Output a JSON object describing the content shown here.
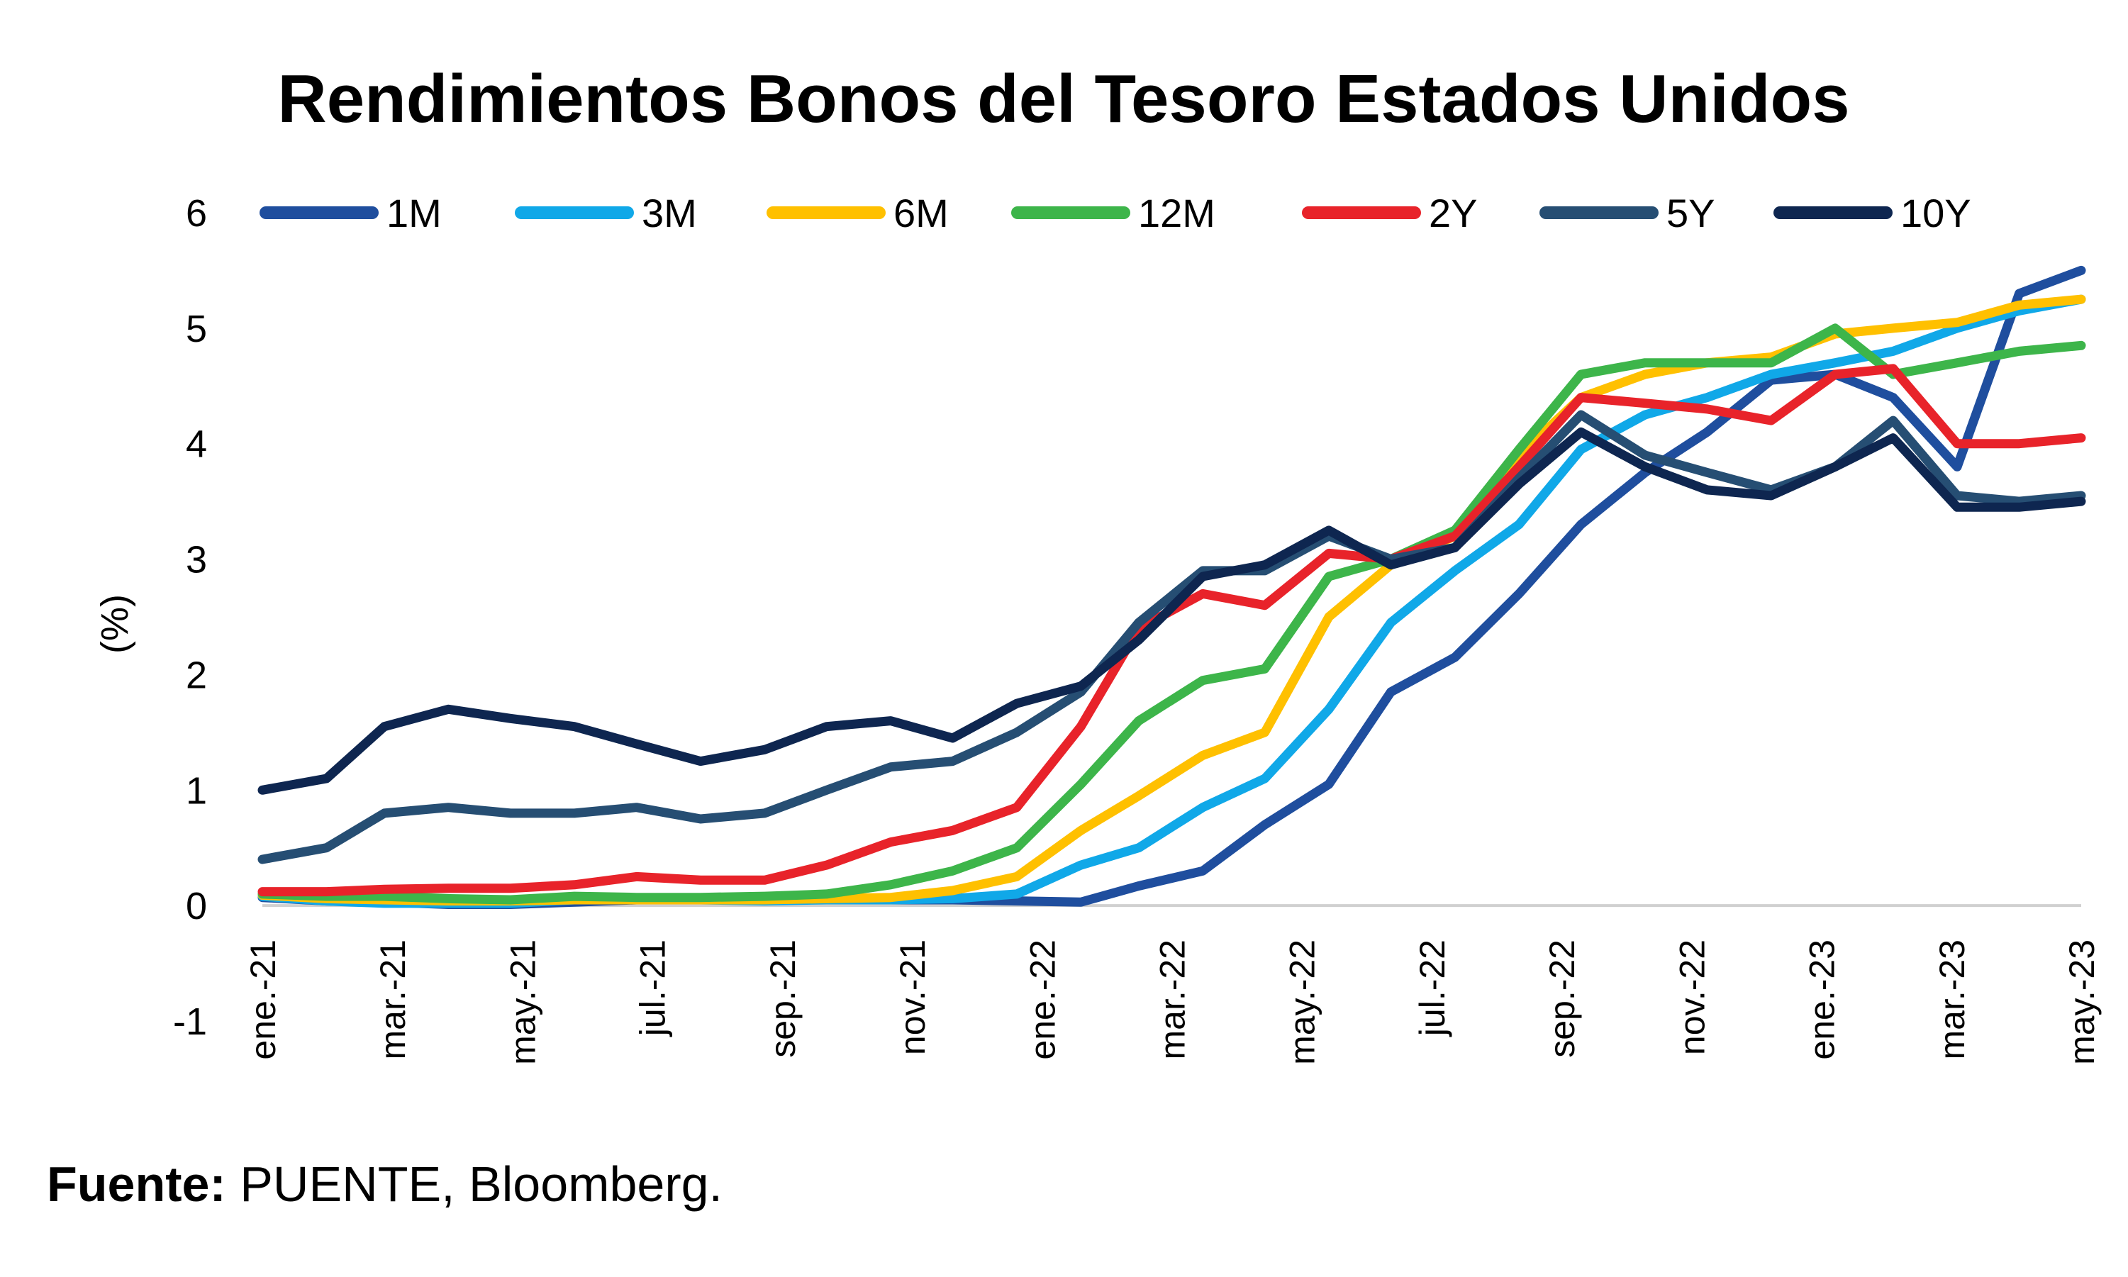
{
  "source": {
    "label": "Fuente:",
    "text": " PUENTE, Bloomberg."
  },
  "chart_data": {
    "type": "line",
    "title": "Rendimientos Bonos del Tesoro Estados Unidos",
    "ylabel": "(%)",
    "xlabel": "",
    "ylim": [
      -1,
      6
    ],
    "yticks": [
      "6",
      "5",
      "4",
      "3",
      "2",
      "1",
      "0",
      "-1"
    ],
    "xlim": [
      "2021-01-01",
      "2023-05-31"
    ],
    "x_tick_labels": [
      "ene.-21",
      "mar.-21",
      "may.-21",
      "jul.-21",
      "sep.-21",
      "nov.-21",
      "ene.-22",
      "mar.-22",
      "may.-22",
      "jul.-22",
      "sep.-22",
      "nov.-22",
      "ene.-23",
      "mar.-23",
      "may.-23"
    ],
    "x": [
      "2021-01-01",
      "2021-02-01",
      "2021-03-01",
      "2021-04-01",
      "2021-05-01",
      "2021-06-01",
      "2021-07-01",
      "2021-08-01",
      "2021-09-01",
      "2021-10-01",
      "2021-11-01",
      "2021-12-01",
      "2022-01-01",
      "2022-02-01",
      "2022-03-01",
      "2022-04-01",
      "2022-05-01",
      "2022-06-01",
      "2022-07-01",
      "2022-08-01",
      "2022-09-01",
      "2022-10-01",
      "2022-11-01",
      "2022-12-01",
      "2023-01-01",
      "2023-02-01",
      "2023-03-01",
      "2023-04-01",
      "2023-05-01",
      "2023-05-31"
    ],
    "legend_position": "top",
    "grid": false,
    "series": [
      {
        "name": "1M",
        "color": "#1F4E9E",
        "values": [
          0.07,
          0.04,
          0.03,
          0.01,
          0.01,
          0.03,
          0.05,
          0.05,
          0.06,
          0.05,
          0.05,
          0.05,
          0.04,
          0.03,
          0.17,
          0.3,
          0.7,
          1.05,
          1.85,
          2.15,
          2.7,
          3.3,
          3.75,
          4.1,
          4.55,
          4.6,
          4.4,
          3.8,
          5.3,
          5.5
        ]
      },
      {
        "name": "3M",
        "color": "#10A8E8",
        "values": [
          0.08,
          0.04,
          0.02,
          0.02,
          0.02,
          0.05,
          0.05,
          0.05,
          0.04,
          0.05,
          0.05,
          0.06,
          0.1,
          0.35,
          0.5,
          0.85,
          1.1,
          1.7,
          2.45,
          2.9,
          3.3,
          3.95,
          4.25,
          4.4,
          4.6,
          4.7,
          4.8,
          5.0,
          5.15,
          5.25
        ]
      },
      {
        "name": "6M",
        "color": "#FFC000",
        "values": [
          0.09,
          0.06,
          0.05,
          0.04,
          0.04,
          0.05,
          0.05,
          0.05,
          0.05,
          0.06,
          0.07,
          0.13,
          0.25,
          0.65,
          0.95,
          1.3,
          1.5,
          2.5,
          2.95,
          3.2,
          3.9,
          4.4,
          4.6,
          4.7,
          4.75,
          4.95,
          5.0,
          5.05,
          5.2,
          5.25
        ]
      },
      {
        "name": "12M",
        "color": "#3DB54A",
        "values": [
          0.1,
          0.08,
          0.08,
          0.06,
          0.05,
          0.08,
          0.07,
          0.07,
          0.08,
          0.1,
          0.18,
          0.3,
          0.5,
          1.05,
          1.6,
          1.95,
          2.05,
          2.85,
          3.0,
          3.25,
          3.95,
          4.6,
          4.7,
          4.7,
          4.7,
          5.0,
          4.6,
          4.7,
          4.8,
          4.85
        ]
      },
      {
        "name": "2Y",
        "color": "#E8232A",
        "values": [
          0.12,
          0.12,
          0.14,
          0.15,
          0.15,
          0.18,
          0.25,
          0.22,
          0.22,
          0.35,
          0.55,
          0.65,
          0.85,
          1.55,
          2.4,
          2.7,
          2.6,
          3.05,
          3.0,
          3.2,
          3.8,
          4.4,
          4.35,
          4.3,
          4.2,
          4.6,
          4.65,
          4.0,
          4.0,
          4.05
        ]
      },
      {
        "name": "5Y",
        "color": "#264E73",
        "values": [
          0.4,
          0.5,
          0.8,
          0.85,
          0.8,
          0.8,
          0.85,
          0.75,
          0.8,
          1.0,
          1.2,
          1.25,
          1.5,
          1.85,
          2.45,
          2.9,
          2.9,
          3.2,
          3.0,
          3.1,
          3.7,
          4.25,
          3.9,
          3.75,
          3.6,
          3.8,
          4.2,
          3.55,
          3.5,
          3.55
        ]
      },
      {
        "name": "10Y",
        "color": "#0E2650",
        "values": [
          1.0,
          1.1,
          1.55,
          1.7,
          1.62,
          1.55,
          1.4,
          1.25,
          1.35,
          1.55,
          1.6,
          1.45,
          1.75,
          1.9,
          2.3,
          2.85,
          2.95,
          3.25,
          2.95,
          3.1,
          3.65,
          4.1,
          3.8,
          3.6,
          3.55,
          3.8,
          4.05,
          3.45,
          3.45,
          3.5
        ]
      }
    ]
  }
}
